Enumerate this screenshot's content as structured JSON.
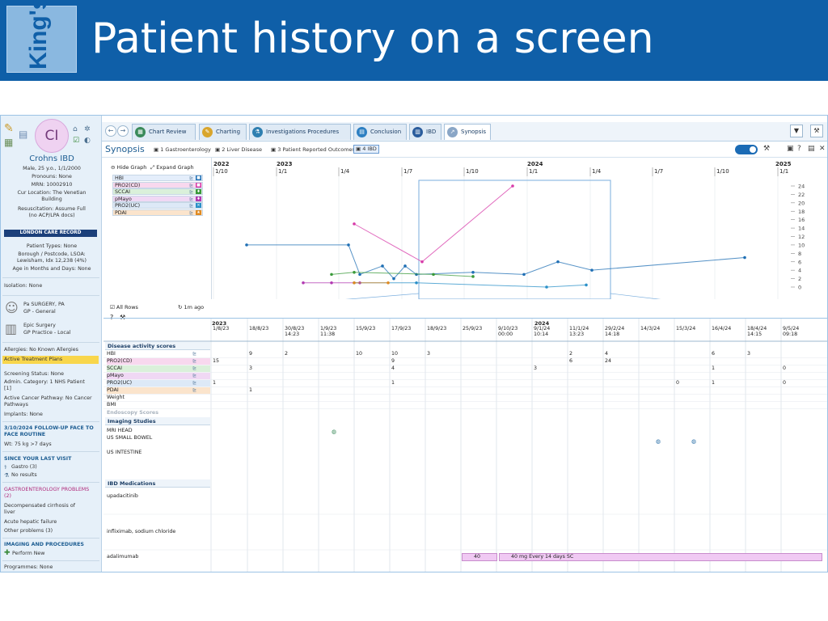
{
  "slide": {
    "logo_text": "King's",
    "title": "Patient history on a screen"
  },
  "sidebar": {
    "initials": "CI",
    "name": "Crohns IBD",
    "lines": [
      "Male, 25 y.o., 1/1/2000",
      "Pronouns: None",
      "MRN: 10002910",
      "Cur Location: The Venetian",
      "Building",
      "Resuscitation: Assume Full",
      "(no ACP/LPA docs)"
    ],
    "record": "LONDON CARE RECORD",
    "patient_info": [
      "Patient Types: None",
      "Borough / Postcode, LSOA:",
      "Lewisham, Idx 12,238 (4%)",
      "Age in Months and Days: None"
    ],
    "isolation": "Isolation: None",
    "gp_name": "Pa SURGERY, PA",
    "gp_role": "GP - General",
    "practice_name": "Epic Surgery",
    "practice_role": "GP Practice - Local",
    "allergies": "Allergies: No Known Allergies",
    "treatment_plans": "Active Treatment Plans",
    "status_lines": [
      "Screening Status: None",
      "Admin. Category: 1 NHS Patient",
      "[1]",
      "Active Cancer Pathway: No Cancer",
      "Pathways",
      "Implants: None"
    ],
    "followup_1": "3/10/2024 FOLLOW-UP FACE TO",
    "followup_2": "FACE ROUTINE",
    "weight": "Wt: 75 kg >7 days",
    "last_visit": "SINCE YOUR LAST VISIT",
    "gastro": "Gastro (3)",
    "no_results": "No results",
    "problems_1": "GASTROENTEROLOGY PROBLEMS",
    "problems_2": "(2)",
    "problem_a1": "Decompensated cirrhosis of",
    "problem_a2": "liver",
    "problem_b": "Acute hepatic failure",
    "other_problems": "Other problems (3)",
    "imaging": "IMAGING AND PROCEDURES",
    "perform_new": "Perform New",
    "programmes": "Programmes: None"
  },
  "tabs": [
    "Chart Review",
    "Charting",
    "Investigations Procedures",
    "Conclusion",
    "IBD",
    "Synopsis"
  ],
  "synopsis": {
    "title": "Synopsis",
    "subtabs": [
      "1 Gastroenterology",
      "2 Liver Disease",
      "3 Patient Reported Outcomes",
      "4 IBD"
    ]
  },
  "graph_controls": {
    "hide_graph": "Hide Graph",
    "expand_graph": "Expand Graph",
    "all_rows": "All Rows",
    "refresh": "1m ago"
  },
  "legend": [
    {
      "label": "HBI",
      "color": "#1f6fb4",
      "mark": "■"
    },
    {
      "label": "PRO2(CD)",
      "color": "#d73aa8",
      "mark": "■"
    },
    {
      "label": "SCCAI",
      "color": "#3a9a3a",
      "mark": "♦"
    },
    {
      "label": "pMayo",
      "color": "#b23ab2",
      "mark": "♦"
    },
    {
      "label": "PRO2(UC)",
      "color": "#2a90c8",
      "mark": "×"
    },
    {
      "label": "PDAI",
      "color": "#e08a20",
      "mark": "★"
    }
  ],
  "timeline": {
    "years": [
      {
        "year": "2022",
        "months": [
          "1/10"
        ]
      },
      {
        "year": "2023",
        "months": [
          "1/1",
          "1/4",
          "1/7",
          "1/10"
        ]
      },
      {
        "year": "2024",
        "months": [
          "1/1",
          "1/4",
          "1/7",
          "1/10"
        ]
      },
      {
        "year": "2025",
        "months": [
          "1/1"
        ]
      }
    ],
    "y_ticks": [
      "24",
      "22",
      "20",
      "18",
      "16",
      "14",
      "12",
      "10",
      "8",
      "6",
      "4",
      "2",
      "0"
    ]
  },
  "chart_data": {
    "type": "line",
    "xlabel": "",
    "ylabel": "",
    "ylim": [
      0,
      24
    ],
    "series": [
      {
        "name": "HBI",
        "points": [
          [
            0.05,
            10
          ],
          [
            0.23,
            10
          ],
          [
            0.25,
            3
          ],
          [
            0.29,
            5
          ],
          [
            0.31,
            2
          ],
          [
            0.33,
            5
          ],
          [
            0.35,
            3
          ],
          [
            0.45,
            3.5
          ],
          [
            0.54,
            3
          ],
          [
            0.6,
            6
          ],
          [
            0.66,
            4
          ],
          [
            0.93,
            7
          ]
        ]
      },
      {
        "name": "PRO2(CD)",
        "points": [
          [
            0.24,
            15
          ],
          [
            0.36,
            6
          ],
          [
            0.52,
            24
          ]
        ]
      },
      {
        "name": "SCCAI",
        "points": [
          [
            0.2,
            3
          ],
          [
            0.24,
            3.5
          ],
          [
            0.38,
            3
          ],
          [
            0.45,
            2.5
          ]
        ]
      },
      {
        "name": "pMayo",
        "points": [
          [
            0.15,
            1
          ],
          [
            0.2,
            1
          ],
          [
            0.25,
            1
          ]
        ]
      },
      {
        "name": "PRO2(UC)",
        "points": [
          [
            0.24,
            1
          ],
          [
            0.35,
            1
          ],
          [
            0.58,
            0
          ],
          [
            0.65,
            0.5
          ]
        ]
      },
      {
        "name": "PDAI",
        "points": [
          [
            0.24,
            1
          ],
          [
            0.3,
            1
          ]
        ]
      }
    ]
  },
  "grid": {
    "dates": [
      {
        "d": "1/8/23",
        "t": ""
      },
      {
        "d": "18/8/23",
        "t": ""
      },
      {
        "d": "30/8/23",
        "t": "14:23"
      },
      {
        "d": "1/9/23",
        "t": "11:38"
      },
      {
        "d": "15/9/23",
        "t": ""
      },
      {
        "d": "17/9/23",
        "t": ""
      },
      {
        "d": "18/9/23",
        "t": ""
      },
      {
        "d": "25/9/23",
        "t": ""
      },
      {
        "d": "9/10/23",
        "t": "00:00"
      },
      {
        "d": "9/1/24",
        "t": "10:14"
      },
      {
        "d": "11/1/24",
        "t": "13:23"
      },
      {
        "d": "29/2/24",
        "t": "14:18"
      },
      {
        "d": "14/3/24",
        "t": ""
      },
      {
        "d": "15/3/24",
        "t": ""
      },
      {
        "d": "16/4/24",
        "t": ""
      },
      {
        "d": "18/4/24",
        "t": "14:15"
      },
      {
        "d": "9/5/24",
        "t": "09:18"
      }
    ],
    "year_2023": "2023",
    "year_2024": "2024",
    "section_disease": "Disease activity scores",
    "rows": [
      "HBI",
      "PRO2(CD)",
      "SCCAI",
      "pMayo",
      "PRO2(UC)",
      "PDAI",
      "Weight",
      "BMI"
    ],
    "endoscopy": "Endoscopy Scores",
    "section_imaging": "Imaging Studies",
    "imaging_rows": [
      "MRI HEAD",
      "US SMALL BOWEL",
      "US INTESTINE"
    ],
    "section_meds": "IBD Medications",
    "med_rows": [
      "upadacitinib",
      "infliximab, sodium chloride",
      "adalimumab"
    ],
    "med_bar_1": "40",
    "med_bar_2": "40 mg Every 14 days SC",
    "values": {
      "hbi": [
        "9",
        "2",
        "10",
        "10",
        "3",
        "2",
        "4",
        "6",
        "3"
      ],
      "pro2cd": [
        "15",
        "9",
        "6",
        "24"
      ],
      "sccai": [
        "3",
        "4",
        "3",
        "1",
        "0"
      ],
      "pro2uc": [
        "1",
        "1",
        "0",
        "1",
        "0"
      ],
      "pdai": [
        "1"
      ]
    }
  }
}
